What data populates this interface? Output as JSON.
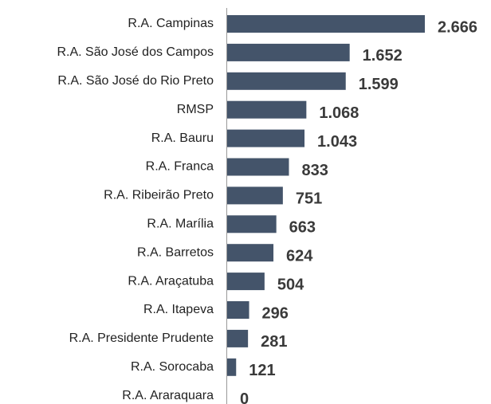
{
  "chart_data": {
    "type": "hbar",
    "categories": [
      "R.A. Campinas",
      "R.A. São José dos Campos",
      "R.A. São José do Rio Preto",
      "RMSP",
      "R.A. Bauru",
      "R.A. Franca",
      "R.A. Ribeirão Preto",
      "R.A. Marília",
      "R.A. Barretos",
      "R.A. Araçatuba",
      "R.A. Itapeva",
      "R.A. Presidente Prudente",
      "R.A. Sorocaba",
      "R.A. Araraquara"
    ],
    "values": [
      2666,
      1652,
      1599,
      1068,
      1043,
      833,
      751,
      663,
      624,
      504,
      296,
      281,
      121,
      0
    ],
    "value_labels": [
      "2.666",
      "1.652",
      "1.599",
      "1.068",
      "1.043",
      "833",
      "751",
      "663",
      "624",
      "504",
      "296",
      "281",
      "121",
      "0"
    ],
    "color": "#44546a",
    "xlim": [
      0,
      2666
    ]
  }
}
